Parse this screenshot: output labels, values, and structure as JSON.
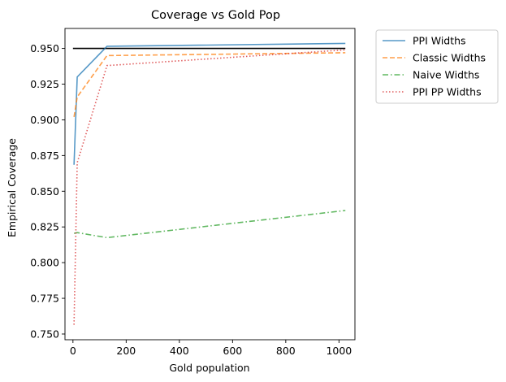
{
  "chart_data": {
    "type": "line",
    "title": "Coverage vs Gold Pop",
    "xlabel": "Gold population",
    "ylabel": "Empirical Coverage",
    "xlim": [
      -30,
      1060
    ],
    "ylim": [
      0.746,
      0.964
    ],
    "xticks": [
      0,
      200,
      400,
      600,
      800,
      1000
    ],
    "yticks": [
      0.75,
      0.775,
      0.8,
      0.825,
      0.85,
      0.875,
      0.9,
      0.925,
      0.95
    ],
    "xtick_labels": [
      "0",
      "200",
      "400",
      "600",
      "800",
      "1000"
    ],
    "ytick_labels": [
      "0.750",
      "0.775",
      "0.800",
      "0.825",
      "0.850",
      "0.875",
      "0.900",
      "0.925",
      "0.950"
    ],
    "grid": false,
    "legend_position": "outside top-right",
    "reference_line": {
      "y": 0.95,
      "x": [
        0,
        1024
      ],
      "color": "#000000"
    },
    "x": [
      4,
      16,
      128,
      1024
    ],
    "series": [
      {
        "name": "PPI Widths",
        "values": [
          0.8685,
          0.93,
          0.9515,
          0.9535
        ],
        "color": "#1f77b4",
        "dash": "solid"
      },
      {
        "name": "Classic Widths",
        "values": [
          0.902,
          0.916,
          0.945,
          0.947
        ],
        "color": "#ff7f0e",
        "dash": "dashed"
      },
      {
        "name": "Naive Widths",
        "values": [
          0.8205,
          0.821,
          0.8175,
          0.8365
        ],
        "color": "#2ca02c",
        "dash": "dashdot"
      },
      {
        "name": "PPI PP Widths",
        "values": [
          0.7565,
          0.87,
          0.938,
          0.949
        ],
        "color": "#d62728",
        "dash": "dotted"
      }
    ]
  }
}
